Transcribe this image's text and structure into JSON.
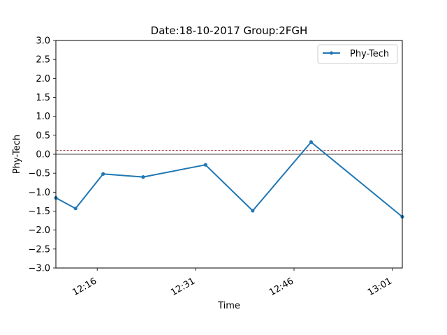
{
  "chart_data": {
    "type": "line",
    "title": "Date:18-10-2017 Group:2FGH",
    "xlabel": "Time",
    "ylabel": "Phy-Tech",
    "x_tick_labels": [
      "12:16",
      "12:31",
      "12:46",
      "13:01"
    ],
    "x_tick_minutes": [
      736,
      751,
      766,
      781
    ],
    "xlim_minutes": [
      729.7,
      782.5
    ],
    "y_ticks": [
      -3.0,
      -2.5,
      -2.0,
      -1.5,
      -1.0,
      -0.5,
      0.0,
      0.5,
      1.0,
      1.5,
      2.0,
      2.5,
      3.0
    ],
    "ylim": [
      -3.0,
      3.0
    ],
    "grid": false,
    "legend_position": "top-right",
    "series": [
      {
        "name": "Phy-Tech",
        "color": "#1f77b4",
        "marker": "point",
        "x_minutes": [
          729.7,
          732.7,
          736.9,
          743.0,
          752.5,
          759.7,
          768.6,
          782.5
        ],
        "x_times": [
          "12:09:42",
          "12:12:42",
          "12:16:54",
          "12:23:00",
          "12:32:30",
          "12:39:42",
          "12:48:36",
          "13:02:30"
        ],
        "values": [
          -1.15,
          -1.43,
          -0.52,
          -0.6,
          -0.28,
          -1.49,
          0.32,
          -1.65
        ]
      }
    ],
    "reference_lines": [
      {
        "y": 0.0,
        "color": "#000000",
        "style": "solid"
      },
      {
        "y": 0.1,
        "color": "#8b1a1a",
        "style": "dotted"
      }
    ]
  }
}
